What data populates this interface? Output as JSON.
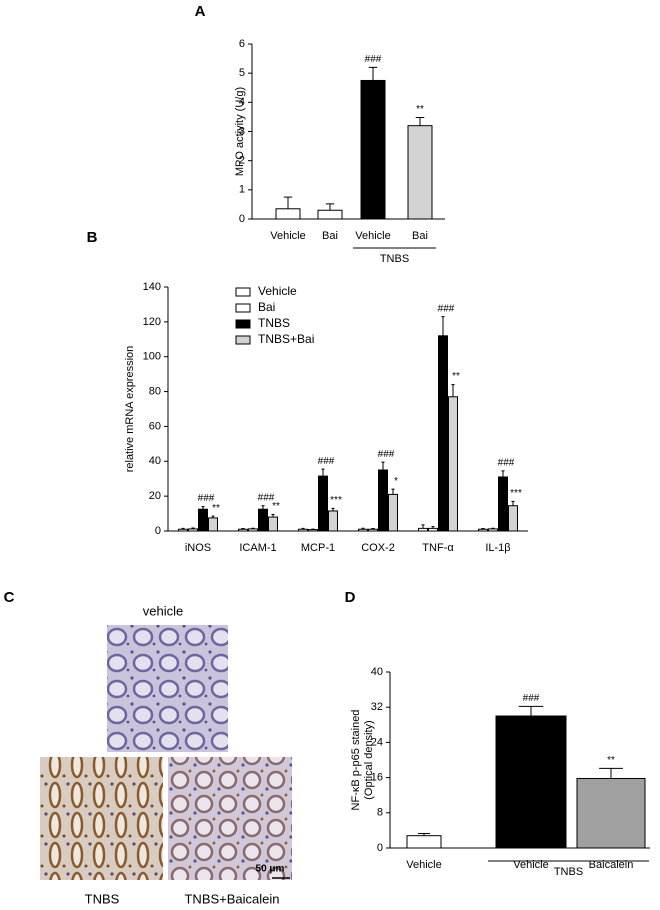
{
  "panel_labels": [
    "A",
    "B",
    "C",
    "D"
  ],
  "chart_data": [
    {
      "type": "bar",
      "ylabel": "MPO activity (U/g)",
      "categories": [
        "Vehicle",
        "Bai",
        "Vehicle",
        "Bai"
      ],
      "group_label": "TNBS",
      "values": [
        0.35,
        0.3,
        4.75,
        3.2
      ],
      "errors": [
        0.4,
        0.22,
        0.45,
        0.28
      ],
      "colors": [
        "#ffffff",
        "#ffffff",
        "#000000",
        "#d3d3d3"
      ],
      "markers": [
        null,
        null,
        "###",
        "**"
      ],
      "ylim": [
        0,
        6
      ],
      "yticks": [
        0,
        1,
        2,
        3,
        4,
        5,
        6
      ]
    },
    {
      "type": "grouped_bar",
      "ylabel": "relative mRNA expression",
      "categories": [
        "iNOS",
        "ICAM-1",
        "MCP-1",
        "COX-2",
        "TNF-α",
        "IL-1β"
      ],
      "series": [
        {
          "name": "Vehicle",
          "color": "#ffffff",
          "values": [
            1,
            1,
            1,
            1,
            1.5,
            1
          ],
          "errors": [
            0.5,
            0.4,
            0.5,
            0.6,
            2,
            0.4
          ]
        },
        {
          "name": "Bai",
          "color": "#ffffff",
          "values": [
            1.2,
            1.2,
            0.8,
            1,
            1.5,
            1.2
          ],
          "errors": [
            0.5,
            0.4,
            0.3,
            0.4,
            1,
            0.4
          ]
        },
        {
          "name": "TNBS",
          "color": "#000000",
          "values": [
            12.5,
            12.5,
            31.5,
            35,
            112,
            31
          ],
          "errors": [
            1.5,
            2,
            4,
            4.5,
            11,
            3.5
          ],
          "markers": [
            "###",
            "###",
            "###",
            "###",
            "###",
            "###"
          ]
        },
        {
          "name": "TNBS+Bai",
          "color": "#d3d3d3",
          "values": [
            7.5,
            8,
            11.5,
            21,
            77,
            14.5
          ],
          "errors": [
            1,
            1.5,
            1.5,
            3,
            7,
            2.5
          ],
          "markers": [
            "**",
            "**",
            "***",
            "*",
            "**",
            "***"
          ]
        }
      ],
      "ylim": [
        0,
        140
      ],
      "yticks": [
        0,
        20,
        40,
        60,
        80,
        100,
        120,
        140
      ],
      "legend": "top-left"
    },
    {
      "type": "bar",
      "ylabel": [
        "NF-κB p-p65 stained",
        "(Optical density)"
      ],
      "categories": [
        "Vehicle",
        "Vehicle",
        "Baicalein"
      ],
      "group_label": "TNBS",
      "values": [
        2.8,
        30,
        15.8
      ],
      "errors": [
        0.5,
        2.2,
        2.3
      ],
      "colors": [
        "#ffffff",
        "#000000",
        "#a0a0a0"
      ],
      "markers": [
        null,
        "###",
        "**"
      ],
      "ylim": [
        0,
        40
      ],
      "yticks": [
        0,
        8,
        16,
        24,
        32,
        40
      ]
    }
  ],
  "micrographs": {
    "top": "vehicle",
    "bottom_left": "TNBS",
    "bottom_right": "TNBS+Baicalein",
    "scale_bar": "50 μm"
  }
}
